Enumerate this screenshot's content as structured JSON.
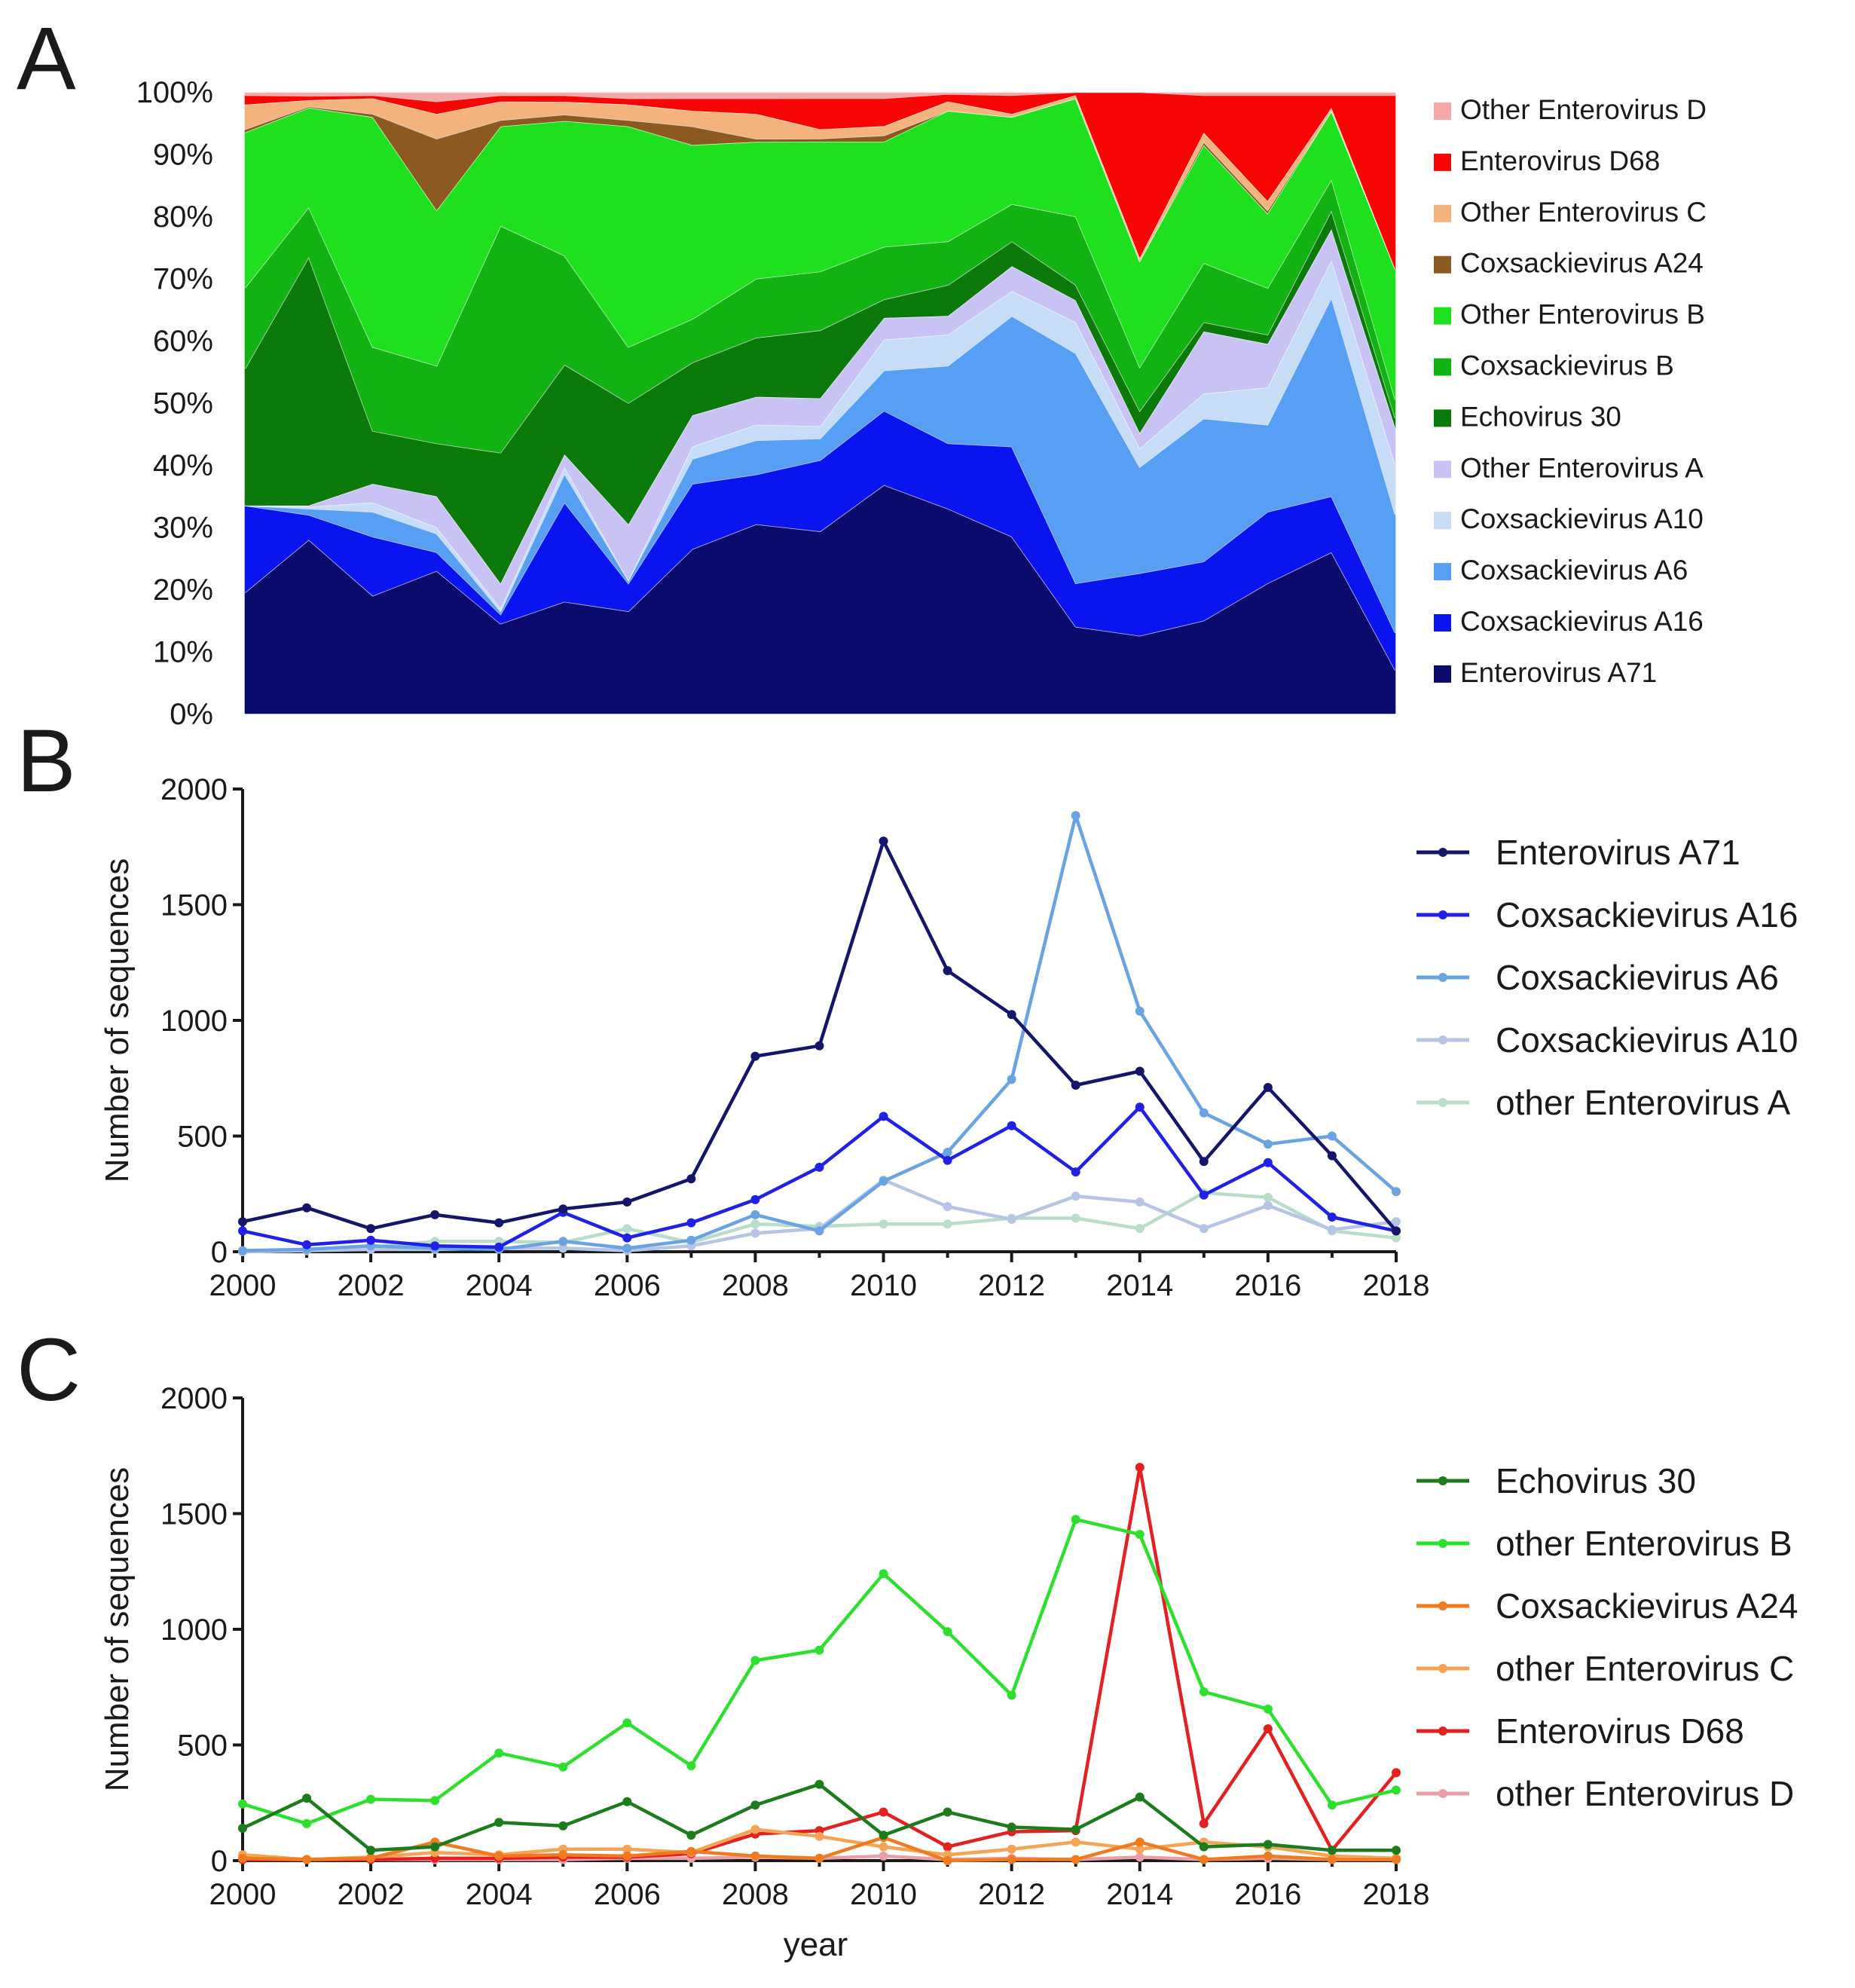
{
  "figure": {
    "panel_letters": [
      "A",
      "B",
      "C"
    ],
    "colors": {
      "Enterovirus A71": "#0b0b6e",
      "Coxsackievirus A16": "#0a14ee",
      "Coxsackievirus A6": "#579ff5",
      "Coxsackievirus A10": "#c7dcf7",
      "Other Enterovirus A": "#c9c3f5",
      "Echovirus 30": "#0b7a0b",
      "Coxsackievirus B": "#11b211",
      "Other Enterovirus B": "#1ee01e",
      "Coxsackievirus A24": "#8c5a21",
      "Other Enterovirus C": "#f4b27d",
      "Enterovirus D68": "#f80606",
      "Other Enterovirus D": "#f6a7a7"
    },
    "line_colors": {
      "Enterovirus A71": "#15166b",
      "Coxsackievirus A16": "#2020e6",
      "Coxsackievirus A6": "#6aa3e2",
      "Coxsackievirus A10": "#b6c5e6",
      "other Enterovirus A": "#b9ddc9",
      "Echovirus 30": "#1c7c1c",
      "other Enterovirus B": "#2ee02e",
      "Coxsackievirus A24": "#f07a20",
      "other Enterovirus C": "#f5a455",
      "Enterovirus D68": "#e42020",
      "other Enterovirus D": "#e8a0a8"
    }
  },
  "chart_data": [
    {
      "panel": "A",
      "type": "area",
      "stacked": true,
      "normalized": true,
      "x": [
        2000,
        2001,
        2002,
        2003,
        2004,
        2005,
        2006,
        2007,
        2008,
        2009,
        2010,
        2011,
        2012,
        2013,
        2014,
        2015,
        2016,
        2017,
        2018
      ],
      "ylim": [
        0,
        100
      ],
      "yticks": [
        "0%",
        "10%",
        "20%",
        "30%",
        "40%",
        "50%",
        "60%",
        "70%",
        "80%",
        "90%",
        "100%"
      ],
      "legend_position": "right",
      "legend": [
        "Other Enterovirus D",
        "Enterovirus D68",
        "Other Enterovirus C",
        "Coxsackievirus A24",
        "Other Enterovirus B",
        "Coxsackievirus B",
        "Echovirus 30",
        "Other Enterovirus A",
        "Coxsackievirus A10",
        "Coxsackievirus A6",
        "Coxsackievirus A16",
        "Enterovirus A71"
      ],
      "series": [
        {
          "name": "Enterovirus A71",
          "values": [
            19.5,
            28,
            19,
            23,
            14.5,
            17.5,
            16.5,
            26.5,
            30.5,
            29.5,
            37,
            33,
            28.5,
            14,
            12.5,
            15,
            21,
            26,
            7
          ]
        },
        {
          "name": "Coxsackievirus A16",
          "values": [
            14,
            4,
            9.5,
            3,
            1.5,
            15.5,
            4.5,
            10.5,
            8,
            11.5,
            12,
            10.5,
            14.5,
            7,
            10,
            9.5,
            11.5,
            9,
            6
          ]
        },
        {
          "name": "Coxsackievirus A6",
          "values": [
            0,
            1,
            4,
            3,
            0.5,
            4.5,
            0.5,
            4,
            5.5,
            3.5,
            6.5,
            12.5,
            21,
            37,
            17,
            23,
            14,
            32,
            19
          ]
        },
        {
          "name": "Coxsackievirus A10",
          "values": [
            0,
            0.3,
            1.5,
            1,
            0.5,
            1,
            0,
            2,
            2.5,
            2,
            5,
            5,
            4,
            5,
            3,
            4,
            6,
            6,
            8
          ]
        },
        {
          "name": "Other Enterovirus A",
          "values": [
            0,
            0.2,
            3,
            5,
            4,
            2,
            9,
            5,
            4.5,
            4.5,
            3.5,
            3,
            4,
            3.5,
            2.5,
            10,
            7,
            5,
            6
          ]
        },
        {
          "name": "Echovirus 30",
          "values": [
            22,
            40,
            8.5,
            8.5,
            21,
            14,
            19.5,
            8.5,
            9.5,
            11,
            3,
            5,
            4,
            2.5,
            3.5,
            1.5,
            1.5,
            3,
            1.5
          ]
        },
        {
          "name": "Coxsackievirus B",
          "values": [
            13,
            8,
            13.5,
            12.5,
            36.5,
            17,
            9,
            7,
            9.5,
            9.5,
            8.5,
            7,
            6,
            11,
            7,
            9.5,
            7.5,
            5,
            3
          ]
        },
        {
          "name": "Other Enterovirus B",
          "values": [
            25,
            16,
            37,
            25,
            16,
            21,
            35.5,
            28,
            22,
            21,
            17,
            21,
            14,
            19,
            17,
            19,
            12,
            11,
            21
          ]
        },
        {
          "name": "Coxsackievirus A24",
          "values": [
            0.5,
            0.2,
            0.5,
            11.5,
            1,
            1,
            1,
            3,
            0.5,
            0.5,
            1,
            0,
            0,
            0,
            0,
            0.5,
            0.5,
            0,
            0
          ]
        },
        {
          "name": "Other Enterovirus C",
          "values": [
            4,
            1,
            2.5,
            4,
            3,
            2,
            2.5,
            2.5,
            4,
            1.5,
            1.5,
            1.5,
            0.5,
            0.5,
            0.5,
            1.5,
            1.5,
            0.5,
            0
          ]
        },
        {
          "name": "Enterovirus D68",
          "values": [
            1.5,
            0.7,
            0.5,
            2,
            1,
            1,
            1,
            2,
            2.5,
            5,
            4.5,
            1.2,
            3,
            0.5,
            26.5,
            6,
            17,
            2,
            28
          ]
        },
        {
          "name": "Other Enterovirus D",
          "values": [
            0.5,
            0.6,
            0.5,
            1.5,
            0.5,
            0.5,
            1,
            1,
            1,
            1,
            1,
            0.3,
            0.5,
            0,
            0,
            0.5,
            0.5,
            0.5,
            0.5
          ]
        }
      ]
    },
    {
      "panel": "B",
      "type": "line",
      "x": [
        2000,
        2001,
        2002,
        2003,
        2004,
        2005,
        2006,
        2007,
        2008,
        2009,
        2010,
        2011,
        2012,
        2013,
        2014,
        2015,
        2016,
        2017,
        2018
      ],
      "xticks": [
        "2000",
        "2002",
        "2004",
        "2006",
        "2008",
        "2010",
        "2012",
        "2014",
        "2016",
        "2018"
      ],
      "ylim": [
        0,
        2000
      ],
      "yticks": [
        "0",
        "500",
        "1000",
        "1500",
        "2000"
      ],
      "ylabel": "Number of sequences",
      "legend_position": "right",
      "series": [
        {
          "name": "Enterovirus A71",
          "values": [
            130,
            190,
            100,
            160,
            125,
            185,
            215,
            315,
            845,
            890,
            1775,
            1215,
            1025,
            720,
            780,
            390,
            710,
            415,
            90
          ]
        },
        {
          "name": "Coxsackievirus A16",
          "values": [
            90,
            30,
            50,
            25,
            20,
            170,
            60,
            125,
            225,
            365,
            585,
            395,
            545,
            345,
            625,
            245,
            385,
            150,
            90
          ]
        },
        {
          "name": "Coxsackievirus A6",
          "values": [
            5,
            10,
            25,
            15,
            10,
            45,
            15,
            50,
            160,
            90,
            305,
            430,
            745,
            1885,
            1040,
            600,
            465,
            500,
            260
          ]
        },
        {
          "name": "Coxsackievirus A10",
          "values": [
            0,
            5,
            10,
            10,
            15,
            15,
            5,
            25,
            80,
            100,
            310,
            195,
            140,
            240,
            215,
            100,
            200,
            95,
            130
          ]
        },
        {
          "name": "other Enterovirus A",
          "values": [
            0,
            5,
            20,
            45,
            45,
            40,
            100,
            40,
            120,
            110,
            120,
            120,
            145,
            145,
            100,
            255,
            235,
            90,
            60
          ]
        }
      ]
    },
    {
      "panel": "C",
      "type": "line",
      "x": [
        2000,
        2001,
        2002,
        2003,
        2004,
        2005,
        2006,
        2007,
        2008,
        2009,
        2010,
        2011,
        2012,
        2013,
        2014,
        2015,
        2016,
        2017,
        2018
      ],
      "xticks": [
        "2000",
        "2002",
        "2004",
        "2006",
        "2008",
        "2010",
        "2012",
        "2014",
        "2016",
        "2018"
      ],
      "ylim": [
        0,
        2000
      ],
      "yticks": [
        "0",
        "500",
        "1000",
        "1500",
        "2000"
      ],
      "ylabel": "Number of sequences",
      "xlabel": "year",
      "legend_position": "right",
      "series": [
        {
          "name": "Echovirus 30",
          "values": [
            140,
            270,
            45,
            60,
            165,
            150,
            255,
            110,
            240,
            330,
            110,
            210,
            145,
            135,
            275,
            60,
            70,
            45,
            45
          ]
        },
        {
          "name": "other Enterovirus B",
          "values": [
            245,
            160,
            265,
            260,
            465,
            405,
            595,
            410,
            865,
            910,
            1240,
            990,
            715,
            1475,
            1410,
            730,
            655,
            240,
            305
          ]
        },
        {
          "name": "Coxsackievirus A24",
          "values": [
            10,
            5,
            10,
            80,
            20,
            25,
            20,
            40,
            20,
            10,
            100,
            0,
            5,
            5,
            80,
            5,
            20,
            5,
            5
          ]
        },
        {
          "name": "other Enterovirus C",
          "values": [
            25,
            5,
            15,
            35,
            25,
            50,
            50,
            35,
            135,
            105,
            60,
            25,
            50,
            80,
            50,
            80,
            60,
            20,
            10
          ]
        },
        {
          "name": "Enterovirus D68",
          "values": [
            5,
            5,
            5,
            10,
            10,
            15,
            15,
            30,
            115,
            130,
            210,
            60,
            125,
            130,
            1700,
            160,
            570,
            45,
            380
          ]
        },
        {
          "name": "other Enterovirus D",
          "values": [
            5,
            5,
            5,
            5,
            5,
            5,
            10,
            10,
            15,
            10,
            20,
            5,
            10,
            5,
            15,
            5,
            10,
            5,
            5
          ]
        }
      ]
    }
  ]
}
